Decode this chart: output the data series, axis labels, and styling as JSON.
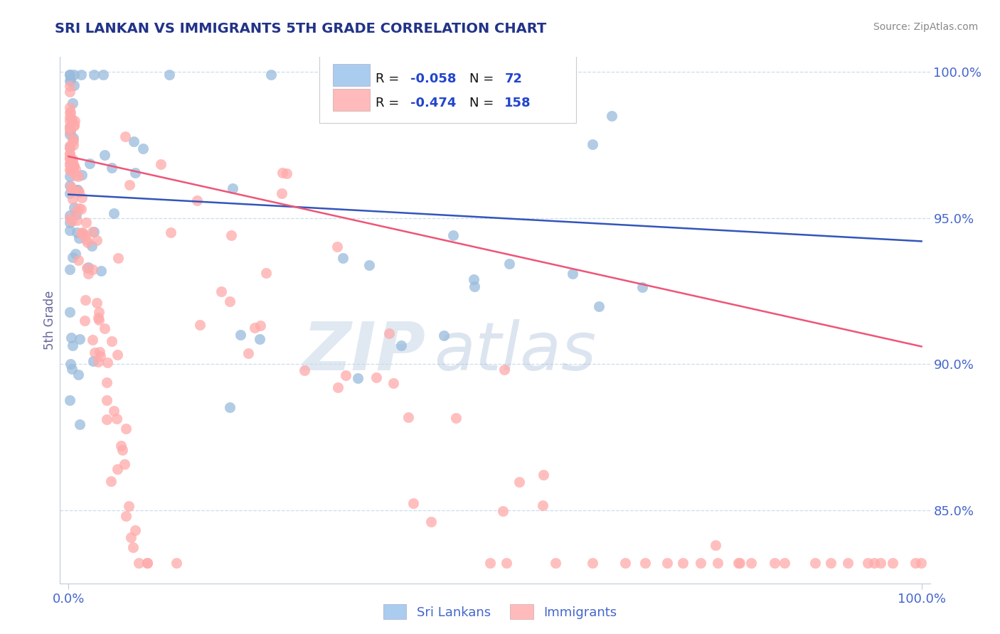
{
  "title": "SRI LANKAN VS IMMIGRANTS 5TH GRADE CORRELATION CHART",
  "source_text": "Source: ZipAtlas.com",
  "ylabel": "5th Grade",
  "watermark_zip": "ZIP",
  "watermark_atlas": "atlas",
  "xlim": [
    -0.01,
    1.01
  ],
  "ylim": [
    0.825,
    1.005
  ],
  "yticks": [
    0.85,
    0.9,
    0.95,
    1.0
  ],
  "ytick_labels": [
    "85.0%",
    "90.0%",
    "95.0%",
    "100.0%"
  ],
  "xtick_labels": [
    "0.0%",
    "100.0%"
  ],
  "blue_R": -0.058,
  "blue_N": 72,
  "pink_R": -0.474,
  "pink_N": 158,
  "blue_dot_color": "#99BBDD",
  "pink_dot_color": "#FFAAAA",
  "blue_line_color": "#3355BB",
  "pink_line_color": "#EE5577",
  "blue_legend_fill": "#AACCEE",
  "pink_legend_fill": "#FFBBBB",
  "title_color": "#223388",
  "axis_tick_color": "#4466CC",
  "ylabel_color": "#666699",
  "legend_R_color": "#2244CC",
  "legend_N_color": "#222222",
  "source_color": "#888888",
  "grid_color": "#CCDDEE",
  "blue_line_start_y": 0.958,
  "blue_line_end_y": 0.942,
  "pink_line_start_y": 0.971,
  "pink_line_end_y": 0.906
}
